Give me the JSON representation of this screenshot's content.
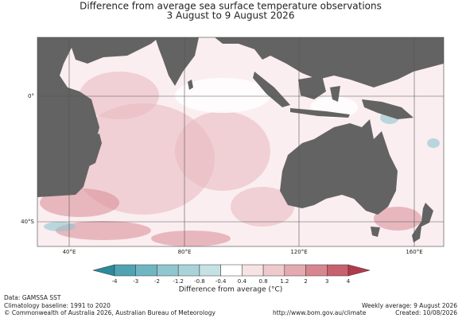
{
  "header": {
    "title": "Difference from average sea surface temperature observations",
    "subtitle": "3 August to 9 August 2026"
  },
  "map": {
    "lat_labels": [
      "0°",
      "40°S"
    ],
    "lon_labels": [
      "40°E",
      "80°E",
      "120°E",
      "160°E"
    ]
  },
  "colorbar": {
    "ticks": [
      "-4",
      "-3",
      "-2",
      "-1.2",
      "-0.8",
      "-0.4",
      "0.4",
      "0.8",
      "1.2",
      "2",
      "3",
      "4"
    ],
    "colors": [
      "#2c8a9a",
      "#4fa3b2",
      "#6fb6c2",
      "#8fc6cf",
      "#a9d3d9",
      "#c6e1e4",
      "#ffffff",
      "#f6e3e3",
      "#eecacc",
      "#e3aab0",
      "#d7868f",
      "#c8616d",
      "#b03a4c"
    ],
    "label": "Difference from average (°C)"
  },
  "footer": {
    "data": "Data: GAMSSA SST",
    "baseline": "Climatology baseline: 1991 to 2020",
    "copyright": "© Commonwealth of Australia 2026, Australian Bureau of Meteorology",
    "weekly": "Weekly average: 9 August 2026",
    "url": "http://www.bom.gov.au/climate",
    "created": "Created: 10/08/2026"
  }
}
